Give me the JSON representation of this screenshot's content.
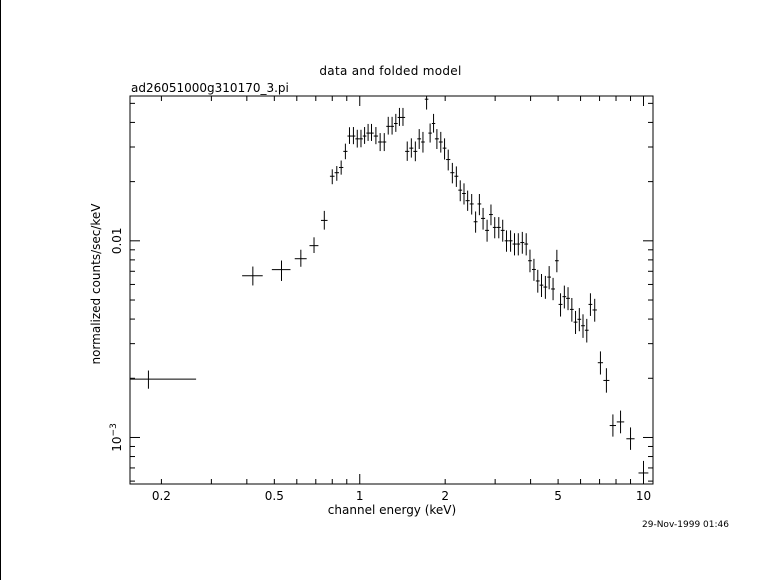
{
  "chart_data": {
    "type": "scatter",
    "title": "data and folded model",
    "subtitle": "ad26051000g310170_3.pi",
    "xlabel": "channel energy (keV)",
    "ylabel": "normalized counts/sec/keV",
    "x_scale": "log",
    "y_scale": "log",
    "xlim": [
      0.155,
      10.8
    ],
    "ylim": [
      0.00058,
      0.0545
    ],
    "grid": false,
    "x_ticks": [
      {
        "value": 0.2,
        "label": "0.2"
      },
      {
        "value": 0.5,
        "label": "0.5"
      },
      {
        "value": 1,
        "label": "1"
      },
      {
        "value": 2,
        "label": "2"
      },
      {
        "value": 5,
        "label": "5"
      },
      {
        "value": 10,
        "label": "10"
      }
    ],
    "y_ticks": [
      {
        "value": 0.001,
        "label": "10",
        "exponent": "−3"
      },
      {
        "value": 0.01,
        "label": "0.01",
        "exponent": ""
      }
    ],
    "series": [
      {
        "x": [
          0.18,
          0.42,
          0.53,
          0.62,
          0.69,
          0.75,
          0.8,
          0.83,
          0.86,
          0.89,
          0.92,
          0.95,
          0.98,
          1.01,
          1.04,
          1.07,
          1.1,
          1.14,
          1.18,
          1.22,
          1.26,
          1.3,
          1.34,
          1.38,
          1.42,
          1.47,
          1.52,
          1.57,
          1.62,
          1.67,
          1.72,
          1.77,
          1.82,
          1.87,
          1.93,
          1.99,
          2.05,
          2.12,
          2.19,
          2.26,
          2.33,
          2.4,
          2.48,
          2.56,
          2.64,
          2.72,
          2.81,
          2.9,
          2.99,
          3.09,
          3.19,
          3.29,
          3.4,
          3.51,
          3.62,
          3.74,
          3.86,
          3.98,
          4.11,
          4.24,
          4.37,
          4.51,
          4.65,
          4.8,
          4.95,
          5.1,
          5.26,
          5.42,
          5.59,
          5.76,
          5.94,
          6.12,
          6.31,
          6.5,
          6.73,
          7.05,
          7.4,
          7.8,
          8.3,
          9.0,
          10.0
        ],
        "xerr": [
          0.085,
          0.035,
          0.04,
          0.03,
          0.025,
          0.02,
          0.015,
          0.015,
          0.015,
          0.015,
          0.015,
          0.015,
          0.015,
          0.015,
          0.015,
          0.015,
          0.02,
          0.02,
          0.02,
          0.02,
          0.02,
          0.02,
          0.02,
          0.02,
          0.025,
          0.025,
          0.025,
          0.025,
          0.025,
          0.025,
          0.025,
          0.025,
          0.025,
          0.03,
          0.03,
          0.03,
          0.035,
          0.035,
          0.035,
          0.035,
          0.035,
          0.04,
          0.04,
          0.04,
          0.04,
          0.045,
          0.045,
          0.045,
          0.045,
          0.05,
          0.05,
          0.05,
          0.055,
          0.055,
          0.055,
          0.06,
          0.06,
          0.06,
          0.065,
          0.065,
          0.065,
          0.07,
          0.07,
          0.075,
          0.075,
          0.08,
          0.08,
          0.085,
          0.085,
          0.09,
          0.09,
          0.095,
          0.095,
          0.1,
          0.12,
          0.15,
          0.18,
          0.2,
          0.25,
          0.3,
          0.4
        ],
        "y": [
          0.00198,
          0.00664,
          0.00714,
          0.00811,
          0.00945,
          0.0127,
          0.0213,
          0.0222,
          0.0236,
          0.0285,
          0.0341,
          0.0341,
          0.033,
          0.033,
          0.0341,
          0.0353,
          0.0353,
          0.0341,
          0.0318,
          0.0318,
          0.0382,
          0.0382,
          0.0395,
          0.0424,
          0.0424,
          0.0285,
          0.0296,
          0.0285,
          0.033,
          0.0318,
          0.0525,
          0.0353,
          0.0395,
          0.033,
          0.0318,
          0.0296,
          0.0259,
          0.0222,
          0.0213,
          0.0181,
          0.0174,
          0.016,
          0.0154,
          0.0125,
          0.0154,
          0.013,
          0.0113,
          0.0136,
          0.0117,
          0.0117,
          0.0113,
          0.01,
          0.01,
          0.00963,
          0.00963,
          0.0098,
          0.00963,
          0.00792,
          0.00715,
          0.00625,
          0.00595,
          0.00582,
          0.00654,
          0.00569,
          0.00792,
          0.00475,
          0.0052,
          0.0051,
          0.00448,
          0.00386,
          0.00399,
          0.0037,
          0.00351,
          0.00475,
          0.00445,
          0.0024,
          0.00195,
          0.00115,
          0.0012,
          0.000985,
          0.00066
        ],
        "yerr_lo": [
          0.00021,
          0.00071,
          0.00089,
          0.00073,
          0.00078,
          0.0013,
          0.0019,
          0.002,
          0.0019,
          0.0025,
          0.003,
          0.0031,
          0.0032,
          0.0031,
          0.003,
          0.0031,
          0.0031,
          0.0031,
          0.0032,
          0.0032,
          0.0035,
          0.0035,
          0.0037,
          0.004,
          0.004,
          0.003,
          0.0031,
          0.0031,
          0.0037,
          0.0037,
          0.006,
          0.0037,
          0.004,
          0.0037,
          0.0037,
          0.0037,
          0.0031,
          0.0026,
          0.0025,
          0.0022,
          0.0021,
          0.0018,
          0.0018,
          0.0015,
          0.0019,
          0.0016,
          0.0014,
          0.0016,
          0.0014,
          0.0014,
          0.0014,
          0.0012,
          0.0012,
          0.0012,
          0.0012,
          0.0012,
          0.0012,
          0.001,
          0.00089,
          0.0008,
          0.00077,
          0.00075,
          0.00087,
          0.0007,
          0.001,
          0.00063,
          0.00067,
          0.00066,
          0.0006,
          0.0005,
          0.00052,
          0.00049,
          0.00047,
          0.0006,
          0.00057,
          0.00031,
          0.00026,
          0.00014,
          0.00015,
          0.00012,
          9e-05
        ],
        "yerr_hi": [
          0.00021,
          0.00076,
          0.0008,
          0.0009,
          0.00097,
          0.0015,
          0.0018,
          0.0018,
          0.002,
          0.0027,
          0.0037,
          0.0038,
          0.0037,
          0.0037,
          0.0038,
          0.004,
          0.004,
          0.0038,
          0.0035,
          0.0035,
          0.0045,
          0.0045,
          0.0047,
          0.005,
          0.005,
          0.0035,
          0.0036,
          0.0035,
          0.004,
          0.004,
          0.0075,
          0.0042,
          0.0047,
          0.004,
          0.004,
          0.0036,
          0.0032,
          0.0027,
          0.0026,
          0.0022,
          0.0022,
          0.002,
          0.0019,
          0.0016,
          0.0019,
          0.0017,
          0.0015,
          0.0017,
          0.0015,
          0.0015,
          0.0015,
          0.0013,
          0.0013,
          0.0013,
          0.0013,
          0.0013,
          0.0013,
          0.0011,
          0.00095,
          0.00087,
          0.00083,
          0.00081,
          0.0009,
          0.00079,
          0.00108,
          0.00066,
          0.00072,
          0.00071,
          0.00064,
          0.00054,
          0.00056,
          0.00053,
          0.0005,
          0.00066,
          0.00062,
          0.00034,
          0.0003,
          0.00016,
          0.00017,
          0.00014,
          0.0001
        ]
      }
    ]
  },
  "footer": {
    "timestamp": "29-Nov-1999 01:46"
  }
}
